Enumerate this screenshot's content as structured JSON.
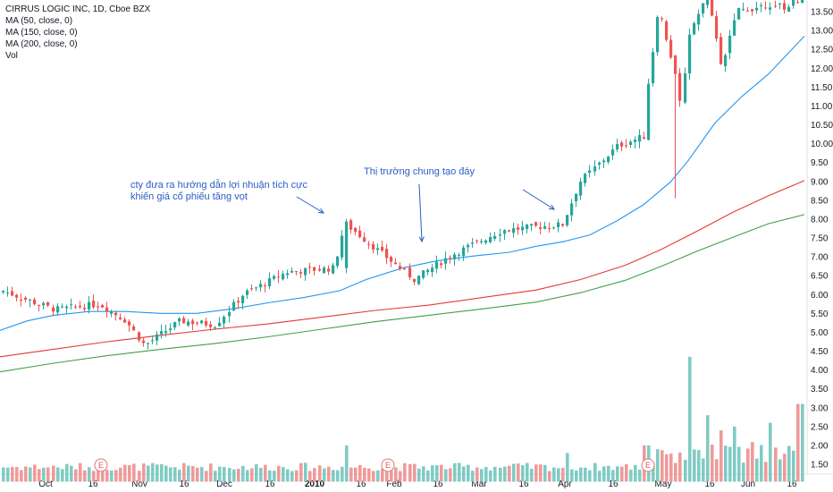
{
  "chart_data": {
    "type": "candlestick",
    "title": "CIRRUS LOGIC INC, 1D, Cboe BZX",
    "legend": [
      "CIRRUS LOGIC INC, 1D, Cboe BZX",
      "MA (50, close, 0)",
      "MA (150, close, 0)",
      "MA (200, close, 0)",
      "Vol"
    ],
    "y_axis": {
      "position": "right",
      "ticks": [
        "13.50",
        "13.00",
        "12.50",
        "12.00",
        "11.50",
        "11.00",
        "10.50",
        "10.00",
        "9.50",
        "9.00",
        "8.50",
        "8.00",
        "7.50",
        "7.00",
        "6.50",
        "6.00",
        "5.50",
        "5.00",
        "4.50",
        "4.00",
        "3.50",
        "3.00",
        "2.50",
        "2.00",
        "1.50"
      ],
      "price_range": [
        1.25,
        13.75
      ]
    },
    "x_axis": {
      "ticks": [
        "Oct",
        "16",
        "Nov",
        "16",
        "Dec",
        "16",
        "2010",
        "16",
        "Feb",
        "16",
        "Mar",
        "16",
        "Apr",
        "16",
        "May",
        "16",
        "Jun",
        "16"
      ],
      "bold": [
        "2010"
      ]
    },
    "annotations": [
      {
        "line1": "cty đưa ra hướng dẫn lợi nhuận tích cực",
        "line2": "khiến giá cổ phiếu tăng vọt"
      },
      {
        "line1": "Thị trường chung tạo đáy"
      }
    ],
    "earnings_markers": [
      "E",
      "E",
      "E"
    ],
    "colors": {
      "up": "#26a69a",
      "down": "#ef5350",
      "ma50": "#2196f3",
      "ma150": "#e53935",
      "ma200": "#43a047",
      "vol_up": "#80cbc4",
      "vol_down": "#ef9a9a",
      "annotation": "#2a5cc6"
    },
    "key_points": [
      {
        "x": "late Sep 2009",
        "close": 6.1
      },
      {
        "x": "mid Nov 2009",
        "close": 4.65
      },
      {
        "x": "early Jan 2010",
        "close": 7.9
      },
      {
        "x": "mid Feb 2010",
        "close": 6.4
      },
      {
        "x": "late Mar 2010",
        "close": 7.85
      },
      {
        "x": "mid Apr 2010",
        "close": 10.2
      },
      {
        "x": "early May 2010",
        "close": 13.0
      },
      {
        "x": "mid May 2010",
        "close": 11.0
      },
      {
        "x": "late Jun 2010",
        "close": 13.7
      }
    ],
    "ma50": [
      [
        0,
        5.05
      ],
      [
        30,
        5.3
      ],
      [
        60,
        5.45
      ],
      [
        100,
        5.55
      ],
      [
        140,
        5.55
      ],
      [
        180,
        5.5
      ],
      [
        220,
        5.5
      ],
      [
        260,
        5.62
      ],
      [
        300,
        5.78
      ],
      [
        340,
        5.92
      ],
      [
        380,
        6.1
      ],
      [
        410,
        6.4
      ],
      [
        450,
        6.7
      ],
      [
        490,
        6.9
      ],
      [
        530,
        7.02
      ],
      [
        570,
        7.12
      ],
      [
        600,
        7.28
      ],
      [
        630,
        7.4
      ],
      [
        660,
        7.58
      ],
      [
        690,
        7.95
      ],
      [
        720,
        8.38
      ],
      [
        750,
        8.98
      ],
      [
        770,
        9.55
      ],
      [
        800,
        10.55
      ],
      [
        830,
        11.25
      ],
      [
        860,
        11.85
      ],
      [
        900,
        12.85
      ]
    ],
    "ma150": [
      [
        0,
        4.35
      ],
      [
        60,
        4.55
      ],
      [
        120,
        4.75
      ],
      [
        180,
        4.92
      ],
      [
        240,
        5.08
      ],
      [
        300,
        5.22
      ],
      [
        360,
        5.4
      ],
      [
        420,
        5.58
      ],
      [
        480,
        5.72
      ],
      [
        540,
        5.92
      ],
      [
        600,
        6.12
      ],
      [
        650,
        6.4
      ],
      [
        700,
        6.78
      ],
      [
        740,
        7.2
      ],
      [
        780,
        7.68
      ],
      [
        820,
        8.18
      ],
      [
        860,
        8.62
      ],
      [
        900,
        9.02
      ]
    ],
    "ma200": [
      [
        0,
        3.95
      ],
      [
        60,
        4.18
      ],
      [
        120,
        4.38
      ],
      [
        180,
        4.55
      ],
      [
        240,
        4.7
      ],
      [
        300,
        4.88
      ],
      [
        360,
        5.08
      ],
      [
        420,
        5.28
      ],
      [
        480,
        5.45
      ],
      [
        540,
        5.62
      ],
      [
        600,
        5.8
      ],
      [
        650,
        6.05
      ],
      [
        700,
        6.38
      ],
      [
        740,
        6.75
      ],
      [
        780,
        7.15
      ],
      [
        820,
        7.52
      ],
      [
        860,
        7.88
      ],
      [
        900,
        8.12
      ]
    ]
  }
}
